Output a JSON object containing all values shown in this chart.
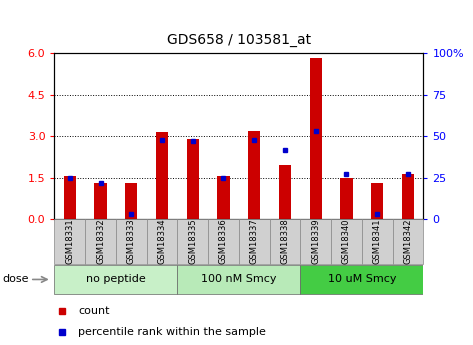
{
  "title": "GDS658 / 103581_at",
  "samples": [
    "GSM18331",
    "GSM18332",
    "GSM18333",
    "GSM18334",
    "GSM18335",
    "GSM18336",
    "GSM18337",
    "GSM18338",
    "GSM18339",
    "GSM18340",
    "GSM18341",
    "GSM18342"
  ],
  "red_values": [
    1.55,
    1.3,
    1.3,
    3.15,
    2.9,
    1.55,
    3.2,
    1.95,
    5.85,
    1.5,
    1.3,
    1.65
  ],
  "blue_values": [
    25,
    22,
    3,
    48,
    47,
    25,
    48,
    42,
    53,
    27,
    3,
    27
  ],
  "ylim_left": [
    0,
    6
  ],
  "ylim_right": [
    0,
    100
  ],
  "yticks_left": [
    0,
    1.5,
    3,
    4.5,
    6
  ],
  "yticks_right": [
    0,
    25,
    50,
    75,
    100
  ],
  "groups": [
    {
      "label": "no peptide",
      "start": 0,
      "end": 4,
      "color": "#c8f0c8"
    },
    {
      "label": "100 nM Smcy",
      "start": 4,
      "end": 8,
      "color": "#b8eab8"
    },
    {
      "label": "10 uM Smcy",
      "start": 8,
      "end": 12,
      "color": "#44cc44"
    }
  ],
  "dose_label": "dose",
  "red_color": "#cc0000",
  "blue_color": "#0000cc",
  "sample_bg_color": "#d0d0d0",
  "legend_count": "count",
  "legend_pct": "percentile rank within the sample",
  "bar_width": 0.4
}
